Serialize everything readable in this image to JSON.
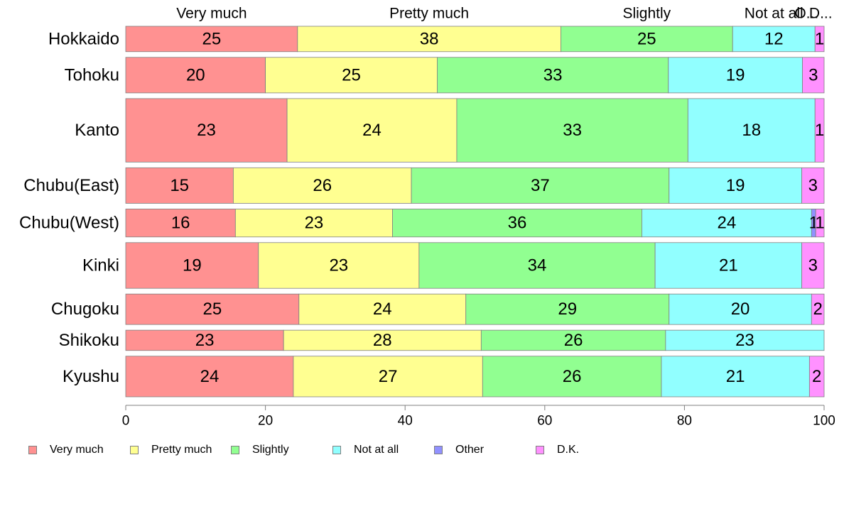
{
  "chart_data": {
    "type": "bar",
    "orientation": "horizontal",
    "stacked": true,
    "categories": [
      "Hokkaido",
      "Tohoku",
      "Kanto",
      "Chubu(East)",
      "Chubu(West)",
      "Kinki",
      "Chugoku",
      "Shikoku",
      "Kyushu"
    ],
    "category_weights": [
      1.0,
      1.4,
      2.5,
      1.4,
      1.1,
      1.8,
      1.2,
      0.8,
      1.6
    ],
    "series": [
      {
        "name": "Very much",
        "color": "#ff9191",
        "values": [
          24.6,
          20.0,
          23.1,
          15.4,
          15.7,
          19.0,
          24.8,
          22.6,
          24.0
        ]
      },
      {
        "name": "Pretty much",
        "color": "#ffff91",
        "values": [
          37.7,
          24.6,
          24.3,
          25.5,
          22.5,
          23.0,
          23.9,
          28.3,
          27.1
        ]
      },
      {
        "name": "Slightly",
        "color": "#91ff91",
        "values": [
          24.6,
          33.1,
          33.1,
          36.9,
          35.7,
          33.8,
          29.1,
          26.4,
          25.6
        ]
      },
      {
        "name": "Not at all",
        "color": "#91ffff",
        "values": [
          11.8,
          19.2,
          18.2,
          19.0,
          24.3,
          21.0,
          20.4,
          22.7,
          21.2
        ]
      },
      {
        "name": "Other",
        "color": "#9191ff",
        "values": [
          0.0,
          0.0,
          0.0,
          0.0,
          0.6,
          0.0,
          0.0,
          0.0,
          0.0
        ]
      },
      {
        "name": "D.K.",
        "color": "#ff91ff",
        "values": [
          1.3,
          3.1,
          1.3,
          3.2,
          1.2,
          3.2,
          1.8,
          0.0,
          2.1
        ]
      }
    ],
    "data_labels": [
      [
        "25",
        "38",
        "25",
        "12",
        "",
        "1"
      ],
      [
        "20",
        "25",
        "33",
        "19",
        "",
        "3"
      ],
      [
        "23",
        "24",
        "33",
        "18",
        "",
        "1"
      ],
      [
        "15",
        "26",
        "37",
        "19",
        "",
        "3"
      ],
      [
        "16",
        "23",
        "36",
        "24",
        "1",
        "1"
      ],
      [
        "19",
        "23",
        "34",
        "21",
        "",
        "3"
      ],
      [
        "25",
        "24",
        "29",
        "20",
        "",
        "2"
      ],
      [
        "23",
        "28",
        "26",
        "23",
        "",
        ""
      ],
      [
        "24",
        "27",
        "26",
        "21",
        "",
        "2"
      ]
    ],
    "top_labels": [
      "Very much",
      "Pretty much",
      "Slightly",
      "Not at all",
      "O...",
      "D..."
    ],
    "xlim": [
      0,
      100
    ],
    "xticks": [
      0,
      20,
      40,
      60,
      80,
      100
    ],
    "xlabel": "",
    "ylabel": "",
    "title": "",
    "grid": false,
    "legend_position": "bottom-left"
  },
  "legend": {
    "items": [
      {
        "label": "Very much",
        "color": "#ff9191"
      },
      {
        "label": "Pretty much",
        "color": "#ffff91"
      },
      {
        "label": "Slightly",
        "color": "#91ff91"
      },
      {
        "label": "Not at all",
        "color": "#91ffff"
      },
      {
        "label": "Other",
        "color": "#9191ff"
      },
      {
        "label": "D.K.",
        "color": "#ff91ff"
      }
    ]
  }
}
